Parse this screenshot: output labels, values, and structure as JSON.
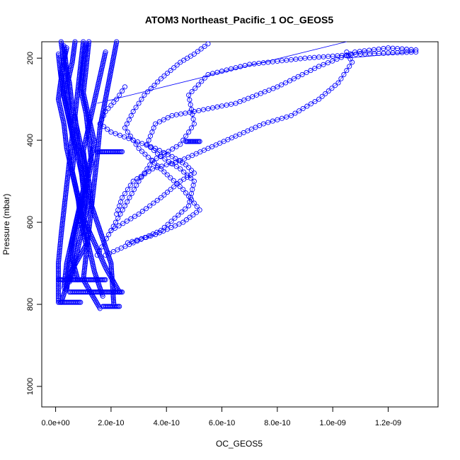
{
  "chart_data": {
    "type": "scatter",
    "title": "ATOM3 Northeast_Pacific_1 OC_GEOS5",
    "xlabel": "OC_GEOS5",
    "ylabel": "Pressure (mbar)",
    "xlim": [
      -5e-11,
      1.38e-09
    ],
    "ylim": [
      1050,
      160
    ],
    "x_ticks": [
      0,
      2e-10,
      4e-10,
      6e-10,
      8e-10,
      1e-09,
      1.2e-09
    ],
    "x_tick_labels": [
      "0.0e+00",
      "2.0e-10",
      "4.0e-10",
      "6.0e-10",
      "8.0e-10",
      "1.0e-09",
      "1.2e-09"
    ],
    "y_ticks": [
      200,
      400,
      600,
      800,
      1000
    ],
    "y_tick_labels": [
      "200",
      "400",
      "600",
      "800",
      "1000"
    ],
    "marker": "open-circle",
    "color": "#0000ff",
    "grid": false,
    "series": [
      {
        "x": [
          2e-11,
          3e-11,
          5e-11,
          6e-11,
          8e-11,
          1e-10,
          1.2e-10,
          1.3e-10,
          1.6e-10,
          2e-10,
          2.1e-10
        ],
        "y": [
          160,
          210,
          260,
          320,
          380,
          440,
          500,
          560,
          620,
          700,
          800
        ]
      },
      {
        "x": [
          3e-11,
          4e-11,
          3e-11,
          5e-11,
          7e-11,
          9e-11,
          1.1e-10,
          1e-10,
          1.4e-10,
          1.8e-10,
          2.3e-10
        ],
        "y": [
          170,
          230,
          290,
          350,
          410,
          470,
          530,
          590,
          650,
          710,
          770
        ]
      },
      {
        "x": [
          7e-11,
          6e-11,
          4e-11,
          5e-11,
          6e-11,
          5e-11,
          4e-11,
          3e-11,
          2e-11,
          1e-11,
          1e-11
        ],
        "y": [
          160,
          210,
          270,
          330,
          390,
          450,
          510,
          570,
          630,
          700,
          790
        ]
      },
      {
        "x": [
          1e-10,
          9e-11,
          8e-11,
          7e-11,
          8e-11,
          9e-11,
          1e-10,
          8e-11,
          6e-11,
          4e-11,
          3e-11
        ],
        "y": [
          160,
          220,
          280,
          340,
          400,
          460,
          520,
          580,
          640,
          700,
          760
        ]
      },
      {
        "x": [
          1.1e-10,
          1e-10,
          9e-11,
          1.1e-10,
          1.2e-10,
          1.3e-10,
          1.1e-10,
          9e-11,
          7e-11,
          6e-11,
          8e-11
        ],
        "y": [
          165,
          215,
          275,
          335,
          395,
          455,
          515,
          575,
          635,
          690,
          740
        ]
      },
      {
        "x": [
          1e-11,
          2e-11,
          1e-11,
          3e-11,
          4e-11,
          6e-11,
          8e-11,
          1e-10,
          1.2e-10,
          1.4e-10,
          1.7e-10
        ],
        "y": [
          190,
          250,
          300,
          360,
          420,
          480,
          540,
          600,
          660,
          720,
          780
        ]
      },
      {
        "x": [
          4e-11,
          2e-11,
          3e-11,
          5e-11,
          7e-11,
          6e-11,
          8e-11,
          9e-11,
          1.1e-10,
          6e-11,
          2e-11
        ],
        "y": [
          175,
          235,
          295,
          355,
          415,
          475,
          535,
          595,
          655,
          715,
          795
        ]
      },
      {
        "x": [
          1.2e-10,
          1.1e-10,
          1e-10,
          1.2e-10,
          1.4e-10,
          1.2e-10,
          1e-10,
          8e-11,
          6e-11,
          5e-11,
          4e-11
        ],
        "y": [
          160,
          225,
          285,
          345,
          405,
          465,
          525,
          585,
          645,
          705,
          765
        ]
      },
      {
        "x": [
          2.2e-10,
          2e-10,
          1.8e-10,
          1.6e-10,
          1.5e-10,
          1.4e-10,
          1.3e-10,
          1.2e-10,
          1.1e-10,
          1e-10,
          1.6e-10
        ],
        "y": [
          160,
          230,
          300,
          370,
          440,
          500,
          560,
          620,
          680,
          740,
          810
        ]
      },
      {
        "x": [
          1.8e-10,
          1.6e-10,
          1.4e-10,
          1.2e-10,
          1e-10,
          1.1e-10,
          1.2e-10,
          1e-10,
          8e-11,
          6e-11,
          5e-11
        ],
        "y": [
          185,
          245,
          305,
          365,
          425,
          485,
          545,
          605,
          665,
          725,
          745
        ]
      },
      {
        "x": [
          1.3e-09,
          1.1e-09,
          9e-10,
          7e-10,
          5.5e-10,
          4.8e-10,
          5e-10,
          4.5e-10,
          3.5e-10,
          3e-10,
          2.5e-10,
          2e-10,
          1.5e-10
        ],
        "y": [
          185,
          190,
          200,
          215,
          240,
          290,
          360,
          410,
          450,
          500,
          560,
          620,
          680
        ]
      },
      {
        "x": [
          1.3e-09,
          1.2e-09,
          1.08e-09,
          9.5e-10,
          8e-10,
          6.5e-10,
          5e-10,
          4.2e-10,
          3.6e-10,
          3.3e-10,
          3.8e-10,
          4.5e-10,
          5e-10,
          4.8e-10,
          3.8e-10,
          2.8e-10,
          1.8e-10
        ],
        "y": [
          180,
          175,
          185,
          220,
          270,
          310,
          330,
          340,
          360,
          410,
          440,
          470,
          500,
          560,
          620,
          650,
          680
        ]
      },
      {
        "x": [
          1.05e-09,
          1.07e-09,
          1.02e-09,
          9.5e-10,
          8.5e-10,
          7.5e-10,
          6.5e-10,
          5.5e-10,
          4.5e-10,
          3.5e-10,
          2.8e-10,
          2.4e-10,
          2.2e-10
        ],
        "y": [
          185,
          210,
          260,
          300,
          340,
          360,
          390,
          420,
          450,
          470,
          500,
          540,
          580
        ]
      },
      {
        "x": [
          5.5e-10,
          5e-10,
          4.5e-10,
          3.8e-10,
          3.2e-10,
          2.8e-10,
          2.5e-10,
          3e-10,
          3.8e-10,
          4.6e-10,
          5.2e-10,
          4.6e-10,
          3.6e-10,
          2.6e-10
        ],
        "y": [
          165,
          190,
          210,
          250,
          290,
          330,
          370,
          420,
          470,
          520,
          570,
          600,
          630,
          650
        ]
      },
      {
        "x": [
          2.5e-10,
          2.2e-10,
          1.8e-10,
          1.6e-10,
          2e-10,
          2.8e-10,
          3.6e-10,
          4.2e-10,
          4.7e-10,
          5e-10,
          4.5e-10,
          3.8e-10,
          3e-10,
          2e-10
        ],
        "y": [
          270,
          300,
          330,
          360,
          380,
          400,
          420,
          440,
          460,
          480,
          500,
          540,
          580,
          620
        ]
      }
    ],
    "horizontal_clusters": [
      {
        "y": 740,
        "x_min": 1e-11,
        "x_max": 1.8e-10
      },
      {
        "y": 770,
        "x_min": 5e-11,
        "x_max": 2.4e-10
      },
      {
        "y": 795,
        "x_min": 1e-11,
        "x_max": 9e-11
      },
      {
        "y": 805,
        "x_min": 1.7e-10,
        "x_max": 2.3e-10
      },
      {
        "y": 403,
        "x_min": 4.7e-10,
        "x_max": 5.2e-10
      },
      {
        "y": 428,
        "x_min": 1.5e-10,
        "x_max": 2.4e-10
      }
    ],
    "connector_lines": [
      {
        "x": [
          1.5e-10,
          1.05e-09
        ],
        "y": [
          310,
          160
        ]
      },
      {
        "x": [
          1.05e-09,
          1.3e-09
        ],
        "y": [
          200,
          185
        ]
      }
    ]
  }
}
